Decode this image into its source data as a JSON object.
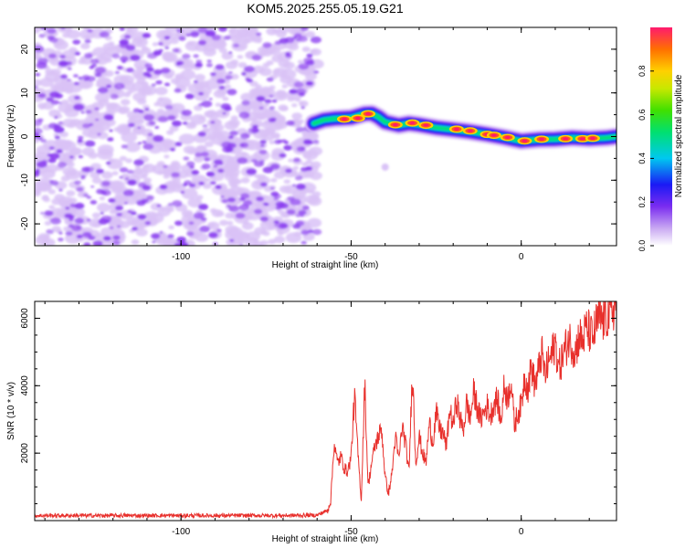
{
  "title": "KOM5.2025.255.05.19.G21",
  "colors": {
    "snr_line": "#e8302c",
    "noise_purple": "#8a3cf0",
    "noise_light": "#d9c2f7",
    "frame": "#000000"
  },
  "chart_data": [
    {
      "type": "heatmap",
      "title": "KOM5.2025.255.05.19.G21",
      "xlabel": "Height of straight line (km)",
      "ylabel": "Frequency (Hz)",
      "xlim": [
        -143,
        28
      ],
      "ylim": [
        -25,
        25
      ],
      "xticks": [
        -100,
        -50,
        0
      ],
      "xtick_labels": [
        "-100",
        "-50",
        "0"
      ],
      "yticks": [
        -20,
        -10,
        0,
        10,
        20
      ],
      "ytick_labels": [
        "-20",
        "-10",
        "0",
        "10",
        "20"
      ],
      "noise_region_x": [
        -143,
        -60
      ],
      "ridge": {
        "x": [
          -61,
          -58,
          -55,
          -50,
          -46,
          -44,
          -42,
          -40,
          -36,
          -33,
          -30,
          -25,
          -20,
          -15,
          -10,
          -5,
          0,
          5,
          10,
          15,
          20,
          25,
          28
        ],
        "freq_hz": [
          3.0,
          3.8,
          4.1,
          4.3,
          5.2,
          5.3,
          4.5,
          3.3,
          2.6,
          3.0,
          2.7,
          2.0,
          1.6,
          1.1,
          0.5,
          -0.2,
          -1.0,
          -0.7,
          -0.6,
          -0.3,
          -0.5,
          -0.3,
          0.0
        ],
        "peak_x": [
          -52,
          -48,
          -45,
          -37,
          -32,
          -28,
          -19,
          -15,
          -10,
          -8,
          -4,
          1,
          6,
          13,
          18,
          21
        ],
        "peak_freq_hz": [
          4.0,
          4.2,
          5.2,
          2.7,
          3.1,
          2.6,
          1.7,
          1.3,
          0.5,
          0.3,
          -0.2,
          -1.0,
          -0.6,
          -0.5,
          -0.5,
          -0.4
        ]
      },
      "colorbar": {
        "label": "Normalized spectral amplitude",
        "range": [
          0.0,
          1.0
        ],
        "ticks": [
          0.0,
          0.2,
          0.4,
          0.6,
          0.8
        ],
        "tick_labels": [
          "0.0",
          "0.2",
          "0.4",
          "0.6",
          "0.8"
        ]
      }
    },
    {
      "type": "line",
      "xlabel": "Height of straight line (km)",
      "ylabel": "SNR (10 * v/v)",
      "xlim": [
        -143,
        28
      ],
      "ylim": [
        0,
        6500
      ],
      "xticks": [
        -100,
        -50,
        0
      ],
      "xtick_labels": [
        "-100",
        "-50",
        "0"
      ],
      "yticks": [
        2000,
        4000,
        6000
      ],
      "ytick_labels": [
        "2000",
        "4000",
        "6000"
      ],
      "series": [
        {
          "name": "SNR",
          "x": [
            -143,
            -100,
            -70,
            -60,
            -57,
            -56,
            -55,
            -54,
            -53,
            -52,
            -51,
            -50,
            -49,
            -48,
            -47,
            -46,
            -45,
            -44,
            -43,
            -42,
            -41,
            -40,
            -39,
            -38,
            -37,
            -36,
            -35,
            -34,
            -33,
            -32,
            -31,
            -30,
            -29,
            -28,
            -27,
            -26,
            -25,
            -24,
            -23,
            -22,
            -21,
            -20,
            -19,
            -18,
            -17,
            -16,
            -15,
            -14,
            -13,
            -12,
            -11,
            -10,
            -9,
            -8,
            -7,
            -6,
            -5,
            -4,
            -3,
            -2,
            -1,
            0,
            1,
            2,
            3,
            4,
            5,
            6,
            7,
            8,
            9,
            10,
            11,
            12,
            13,
            14,
            15,
            16,
            17,
            18,
            19,
            20,
            21,
            22,
            23,
            24,
            25,
            26,
            27,
            28
          ],
          "values": [
            150,
            150,
            150,
            160,
            300,
            600,
            2300,
            1700,
            1900,
            1550,
            1450,
            1900,
            3700,
            2000,
            600,
            4100,
            1000,
            1700,
            2200,
            2500,
            2700,
            1300,
            800,
            1400,
            2500,
            1800,
            2800,
            2300,
            1400,
            4500,
            1700,
            2500,
            2000,
            1700,
            2900,
            2300,
            3200,
            2700,
            2600,
            2200,
            3300,
            2800,
            3600,
            3000,
            2700,
            3500,
            3000,
            3800,
            3400,
            3000,
            3200,
            3400,
            3100,
            3500,
            3600,
            2900,
            4000,
            3600,
            4200,
            2800,
            3200,
            3400,
            4300,
            3900,
            4600,
            4000,
            4400,
            5000,
            4300,
            4700,
            4900,
            5300,
            4500,
            4800,
            5100,
            5400,
            5200,
            5000,
            5500,
            5300,
            5700,
            5600,
            5400,
            5800,
            6000,
            5900,
            6100,
            6000,
            6300,
            6400
          ]
        }
      ]
    }
  ]
}
